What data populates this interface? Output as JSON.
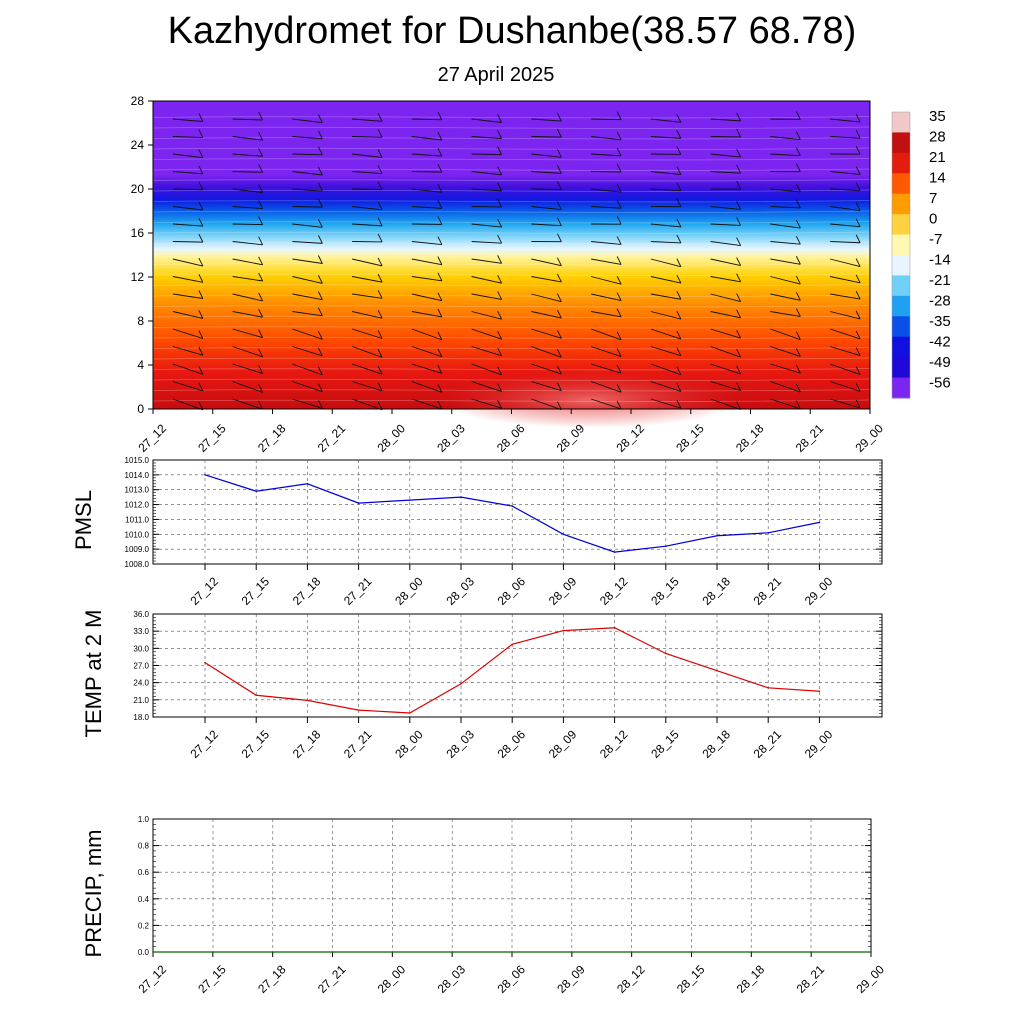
{
  "title": "Kazhydromet for Dushanbe(38.57 68.78)",
  "subtitle": "27 April 2025",
  "chart_data": [
    {
      "type": "heatmap",
      "name": "temperature-profile",
      "y_ticks": [
        "0",
        "4",
        "8",
        "12",
        "16",
        "20",
        "24",
        "28"
      ],
      "ylim": [
        0,
        28
      ],
      "x_ticks": [
        "27_12",
        "27_15",
        "27_18",
        "27_21",
        "28_00",
        "28_03",
        "28_06",
        "28_09",
        "28_12",
        "28_15",
        "28_18",
        "28_21",
        "29_00"
      ],
      "colorbar": {
        "labels": [
          "35",
          "28",
          "21",
          "14",
          "7",
          "0",
          "-7",
          "-14",
          "-21",
          "-28",
          "-35",
          "-42",
          "-49",
          "-56"
        ],
        "colors": [
          "#f0c8c8",
          "#c01010",
          "#e41c0c",
          "#ff5a00",
          "#ff9c00",
          "#ffd040",
          "#fff8b0",
          "#e8f4ff",
          "#70d0f8",
          "#20a0f0",
          "#0a50e8",
          "#1010e0",
          "#2008d8",
          "#7c24f0"
        ]
      }
    },
    {
      "type": "line",
      "name": "pmsl",
      "ylabel": "PMSL",
      "color": "#0000dd",
      "ylim": [
        1008,
        1015
      ],
      "y_ticks": [
        "1008.0",
        "1009.0",
        "1010.0",
        "1011.0",
        "1012.0",
        "1013.0",
        "1014.0",
        "1015.0"
      ],
      "x": [
        "27_12",
        "27_15",
        "27_18",
        "27_21",
        "28_00",
        "28_03",
        "28_06",
        "28_09",
        "28_12",
        "28_15",
        "28_18",
        "28_21",
        "29_00"
      ],
      "values": [
        1014.0,
        1012.9,
        1013.4,
        1012.1,
        1012.3,
        1012.5,
        1011.9,
        1010.0,
        1008.8,
        1009.2,
        1009.9,
        1010.1,
        1010.8
      ]
    },
    {
      "type": "line",
      "name": "temp-2m",
      "ylabel": "TEMP at 2 M",
      "color": "#dd0000",
      "ylim": [
        18,
        36
      ],
      "y_ticks": [
        "18.0",
        "21.0",
        "24.0",
        "27.0",
        "30.0",
        "33.0",
        "36.0"
      ],
      "x": [
        "27_12",
        "27_15",
        "27_18",
        "27_21",
        "28_00",
        "28_03",
        "28_06",
        "28_09",
        "28_12",
        "28_15",
        "28_18",
        "28_21",
        "29_00"
      ],
      "values": [
        27.5,
        21.8,
        20.9,
        19.2,
        18.7,
        23.8,
        30.7,
        33.1,
        33.6,
        29.1,
        26.1,
        23.1,
        22.5
      ]
    },
    {
      "type": "line",
      "name": "precip",
      "ylabel": "PRECIP, mm",
      "color": "#006400",
      "ylim": [
        0,
        1
      ],
      "y_ticks": [
        "0.0",
        "0.2",
        "0.4",
        "0.6",
        "0.8",
        "1.0"
      ],
      "x_ticks": [
        "27_12",
        "27_15",
        "27_18",
        "27_21",
        "28_00",
        "28_03",
        "28_06",
        "28_09",
        "28_12",
        "28_15",
        "28_18",
        "28_21",
        "29_00"
      ],
      "values": [
        0,
        0,
        0,
        0,
        0,
        0,
        0,
        0,
        0,
        0,
        0,
        0
      ]
    }
  ]
}
